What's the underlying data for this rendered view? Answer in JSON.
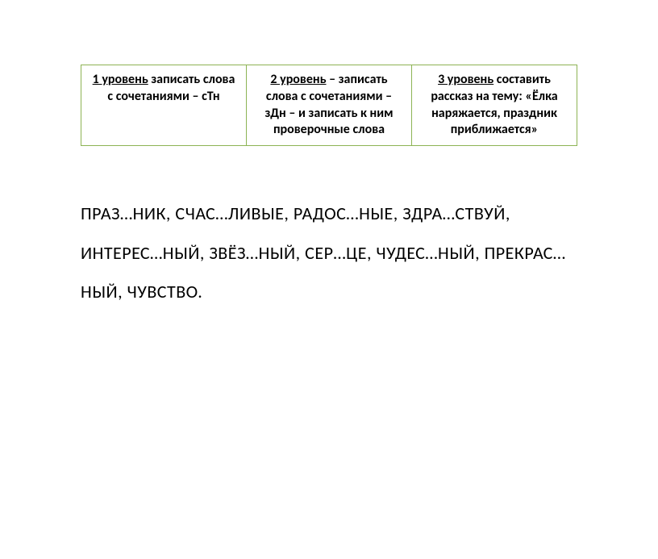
{
  "table": {
    "border_color": "#8db354",
    "cells": [
      {
        "level_label": "1 уровень",
        "rest": " записать слова с сочетаниями – сТн"
      },
      {
        "level_label": "2 уровень",
        "rest": " – записать слова с сочетаниями – зДн – и записать к ним проверочные слова"
      },
      {
        "level_label": "3 уровень",
        "rest": " составить рассказ на тему: «Ёлка наряжается, праздник приближается»"
      }
    ]
  },
  "wordlist": {
    "text": "ПРАЗ…НИК, СЧАС…ЛИВЫЕ, РАДОС…НЫЕ, ЗДРА…СТВУЙ, ИНТЕРЕС…НЫЙ, ЗВЁЗ…НЫЙ, СЕР…ЦЕ, ЧУДЕС…НЫЙ, ПРЕКРАС…НЫЙ, ЧУВСТВО.",
    "font_size": 22,
    "line_height": 2.2
  },
  "colors": {
    "background": "#ffffff",
    "text": "#000000"
  }
}
